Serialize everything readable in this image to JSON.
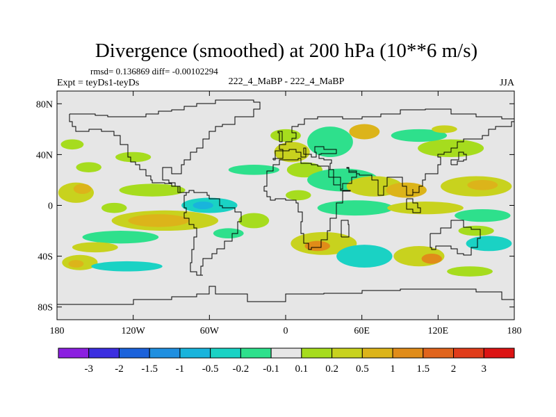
{
  "chart_data": {
    "type": "heatmap",
    "title": "Divergence (smoothed) at 200 hPa (10**6 m/s)",
    "stats": "rmsd= 0.136869 diff= -0.00102294",
    "left_label": "Expt = teyDs1-teyDs",
    "center_label": "222_4_MaBP - 222_4_MaBP",
    "right_label": "JJA",
    "x_axis": {
      "range": [
        -180,
        180
      ],
      "ticks": [
        -180,
        -120,
        -60,
        0,
        60,
        120,
        180
      ],
      "tick_labels": [
        "180",
        "120W",
        "60W",
        "0",
        "60E",
        "120E",
        "180"
      ]
    },
    "y_axis": {
      "range": [
        -90,
        90
      ],
      "ticks": [
        80,
        40,
        0,
        -40,
        -80
      ],
      "tick_labels": [
        "80N",
        "40N",
        "0",
        "40S",
        "80S"
      ]
    },
    "colorbar": {
      "labels": [
        "-3",
        "-2",
        "-1.5",
        "-1",
        "-0.5",
        "-0.2",
        "-0.1",
        "0.1",
        "0.2",
        "0.5",
        "1",
        "1.5",
        "2",
        "3"
      ],
      "colors": [
        "#8b1fe0",
        "#3b2ee0",
        "#1b62db",
        "#1f8fe0",
        "#19b4dc",
        "#1ad2c4",
        "#2ee08c",
        "#e6e6e6",
        "#a6dc1e",
        "#c8d21e",
        "#dcb41a",
        "#e08c19",
        "#e0641c",
        "#e03c1a",
        "#dc1414"
      ]
    },
    "background_color": "#e6e6e6",
    "regions": [
      {
        "lon": -165,
        "lat": 10,
        "rlon": 14,
        "rlat": 8,
        "level": 9
      },
      {
        "lon": -160,
        "lat": 13,
        "rlon": 7,
        "rlat": 4,
        "level": 10
      },
      {
        "lon": -155,
        "lat": 30,
        "rlon": 10,
        "rlat": 4,
        "level": 8
      },
      {
        "lon": -105,
        "lat": 12,
        "rlon": 26,
        "rlat": 5,
        "level": 8
      },
      {
        "lon": -120,
        "lat": 38,
        "rlon": 14,
        "rlat": 4,
        "level": 8
      },
      {
        "lon": -168,
        "lat": 48,
        "rlon": 9,
        "rlat": 4,
        "level": 8
      },
      {
        "lon": -95,
        "lat": -12,
        "rlon": 42,
        "rlat": 8,
        "level": 9
      },
      {
        "lon": -100,
        "lat": -12,
        "rlon": 24,
        "rlat": 5,
        "level": 10
      },
      {
        "lon": -135,
        "lat": -2,
        "rlon": 10,
        "rlat": 4,
        "level": 8
      },
      {
        "lon": -60,
        "lat": 0,
        "rlon": 22,
        "rlat": 6,
        "level": 5
      },
      {
        "lon": -65,
        "lat": 0,
        "rlon": 8,
        "rlat": 3,
        "level": 4
      },
      {
        "lon": -130,
        "lat": -25,
        "rlon": 30,
        "rlat": 5,
        "level": 6
      },
      {
        "lon": -150,
        "lat": -33,
        "rlon": 18,
        "rlat": 4,
        "level": 9
      },
      {
        "lon": -162,
        "lat": -45,
        "rlon": 14,
        "rlat": 6,
        "level": 9
      },
      {
        "lon": -165,
        "lat": -46,
        "rlon": 6,
        "rlat": 3,
        "level": 10
      },
      {
        "lon": -125,
        "lat": -48,
        "rlon": 28,
        "rlat": 4,
        "level": 5
      },
      {
        "lon": -25,
        "lat": -12,
        "rlon": 12,
        "rlat": 6,
        "level": 8
      },
      {
        "lon": -45,
        "lat": -22,
        "rlon": 12,
        "rlat": 4,
        "level": 6
      },
      {
        "lon": -25,
        "lat": 28,
        "rlon": 20,
        "rlat": 4,
        "level": 6
      },
      {
        "lon": 5,
        "lat": 42,
        "rlon": 14,
        "rlat": 8,
        "level": 9
      },
      {
        "lon": 0,
        "lat": 55,
        "rlon": 12,
        "rlat": 5,
        "level": 8
      },
      {
        "lon": 35,
        "lat": 50,
        "rlon": 18,
        "rlat": 12,
        "level": 6
      },
      {
        "lon": 62,
        "lat": 58,
        "rlon": 12,
        "rlat": 6,
        "level": 10
      },
      {
        "lon": 15,
        "lat": 28,
        "rlon": 14,
        "rlat": 6,
        "level": 8
      },
      {
        "lon": 45,
        "lat": 20,
        "rlon": 28,
        "rlat": 9,
        "level": 6
      },
      {
        "lon": 10,
        "lat": 8,
        "rlon": 10,
        "rlat": 4,
        "level": 8
      },
      {
        "lon": 70,
        "lat": 15,
        "rlon": 22,
        "rlat": 8,
        "level": 9
      },
      {
        "lon": 95,
        "lat": 12,
        "rlon": 16,
        "rlat": 6,
        "level": 10
      },
      {
        "lon": 150,
        "lat": 15,
        "rlon": 28,
        "rlat": 8,
        "level": 9
      },
      {
        "lon": 155,
        "lat": 16,
        "rlon": 12,
        "rlat": 4,
        "level": 10
      },
      {
        "lon": 130,
        "lat": 45,
        "rlon": 26,
        "rlat": 7,
        "level": 8
      },
      {
        "lon": 105,
        "lat": 55,
        "rlon": 22,
        "rlat": 5,
        "level": 6
      },
      {
        "lon": 125,
        "lat": 60,
        "rlon": 10,
        "rlat": 3,
        "level": 9
      },
      {
        "lon": 55,
        "lat": -2,
        "rlon": 30,
        "rlat": 6,
        "level": 6
      },
      {
        "lon": 110,
        "lat": -2,
        "rlon": 30,
        "rlat": 5,
        "level": 9
      },
      {
        "lon": 155,
        "lat": -8,
        "rlon": 22,
        "rlat": 5,
        "level": 6
      },
      {
        "lon": 30,
        "lat": -30,
        "rlon": 26,
        "rlat": 9,
        "level": 9
      },
      {
        "lon": 25,
        "lat": -32,
        "rlon": 10,
        "rlat": 4,
        "level": 11
      },
      {
        "lon": 62,
        "lat": -40,
        "rlon": 22,
        "rlat": 9,
        "level": 5
      },
      {
        "lon": 105,
        "lat": -40,
        "rlon": 20,
        "rlat": 8,
        "level": 9
      },
      {
        "lon": 115,
        "lat": -42,
        "rlon": 8,
        "rlat": 4,
        "level": 11
      },
      {
        "lon": 160,
        "lat": -30,
        "rlon": 18,
        "rlat": 6,
        "level": 5
      },
      {
        "lon": 145,
        "lat": -52,
        "rlon": 18,
        "rlat": 4,
        "level": 8
      },
      {
        "lon": 150,
        "lat": -20,
        "rlon": 14,
        "rlat": 4,
        "level": 8
      }
    ],
    "coastlines": [
      [
        [
          -170,
          72
        ],
        [
          -160,
          72
        ],
        [
          -150,
          71
        ],
        [
          -140,
          70
        ],
        [
          -130,
          70
        ],
        [
          -120,
          70
        ],
        [
          -110,
          72
        ],
        [
          -100,
          74
        ],
        [
          -90,
          75
        ],
        [
          -80,
          78
        ],
        [
          -70,
          80
        ],
        [
          -55,
          83
        ],
        [
          -40,
          83
        ],
        [
          -25,
          81
        ],
        [
          -20,
          76
        ],
        [
          -25,
          70
        ],
        [
          -40,
          64
        ],
        [
          -50,
          62
        ],
        [
          -55,
          58
        ],
        [
          -60,
          52
        ],
        [
          -65,
          45
        ],
        [
          -70,
          42
        ],
        [
          -75,
          36
        ],
        [
          -80,
          32
        ],
        [
          -82,
          25
        ],
        [
          -90,
          30
        ],
        [
          -97,
          27
        ],
        [
          -97,
          20
        ],
        [
          -92,
          18
        ],
        [
          -87,
          15
        ],
        [
          -83,
          10
        ],
        [
          -78,
          8
        ],
        [
          -80,
          2
        ],
        [
          -80,
          -2
        ],
        [
          -78,
          -6
        ],
        [
          -80,
          -10
        ],
        [
          -76,
          -15
        ],
        [
          -72,
          -18
        ],
        [
          -70,
          -25
        ],
        [
          -72,
          -35
        ],
        [
          -74,
          -45
        ],
        [
          -75,
          -52
        ],
        [
          -70,
          -55
        ],
        [
          -65,
          -55
        ],
        [
          -67,
          -48
        ],
        [
          -65,
          -42
        ],
        [
          -58,
          -38
        ],
        [
          -54,
          -34
        ],
        [
          -48,
          -28
        ],
        [
          -42,
          -22
        ],
        [
          -38,
          -13
        ],
        [
          -35,
          -8
        ],
        [
          -35,
          -5
        ],
        [
          -40,
          -2
        ],
        [
          -50,
          0
        ],
        [
          -52,
          5
        ],
        [
          -60,
          8
        ],
        [
          -62,
          10
        ],
        [
          -72,
          12
        ],
        [
          -76,
          10
        ],
        [
          -83,
          10
        ],
        [
          -85,
          15
        ],
        [
          -90,
          17
        ],
        [
          -95,
          18
        ],
        [
          -105,
          20
        ],
        [
          -106,
          23
        ],
        [
          -110,
          28
        ],
        [
          -115,
          32
        ],
        [
          -118,
          34
        ],
        [
          -122,
          38
        ],
        [
          -124,
          42
        ],
        [
          -124,
          48
        ],
        [
          -130,
          55
        ],
        [
          -135,
          58
        ],
        [
          -145,
          60
        ],
        [
          -150,
          60
        ],
        [
          -155,
          58
        ],
        [
          -160,
          58
        ],
        [
          -165,
          62
        ],
        [
          -168,
          66
        ],
        [
          -170,
          72
        ]
      ],
      [
        [
          -17,
          15
        ],
        [
          -15,
          27
        ],
        [
          -10,
          32
        ],
        [
          -5,
          36
        ],
        [
          0,
          36
        ],
        [
          10,
          37
        ],
        [
          12,
          33
        ],
        [
          20,
          32
        ],
        [
          25,
          31
        ],
        [
          32,
          31
        ],
        [
          34,
          28
        ],
        [
          38,
          22
        ],
        [
          43,
          12
        ],
        [
          51,
          11
        ],
        [
          45,
          2
        ],
        [
          40,
          -5
        ],
        [
          40,
          -10
        ],
        [
          35,
          -20
        ],
        [
          33,
          -27
        ],
        [
          28,
          -33
        ],
        [
          20,
          -35
        ],
        [
          18,
          -30
        ],
        [
          14,
          -22
        ],
        [
          12,
          -13
        ],
        [
          13,
          -5
        ],
        [
          10,
          2
        ],
        [
          8,
          4
        ],
        [
          0,
          5
        ],
        [
          -8,
          4
        ],
        [
          -12,
          7
        ],
        [
          -15,
          11
        ],
        [
          -17,
          15
        ]
      ],
      [
        [
          -10,
          36
        ],
        [
          -8,
          43
        ],
        [
          -2,
          44
        ],
        [
          -5,
          48
        ],
        [
          0,
          50
        ],
        [
          5,
          53
        ],
        [
          8,
          57
        ],
        [
          5,
          62
        ],
        [
          10,
          64
        ],
        [
          15,
          68
        ],
        [
          25,
          70
        ],
        [
          35,
          70
        ],
        [
          45,
          68
        ],
        [
          60,
          70
        ],
        [
          75,
          72
        ],
        [
          90,
          75
        ],
        [
          110,
          76
        ],
        [
          130,
          72
        ],
        [
          150,
          70
        ],
        [
          170,
          68
        ],
        [
          180,
          66
        ],
        [
          178,
          62
        ],
        [
          165,
          60
        ],
        [
          160,
          55
        ],
        [
          155,
          52
        ],
        [
          140,
          50
        ],
        [
          135,
          45
        ],
        [
          130,
          42
        ],
        [
          125,
          40
        ],
        [
          120,
          38
        ],
        [
          122,
          32
        ],
        [
          120,
          25
        ],
        [
          110,
          20
        ],
        [
          108,
          15
        ],
        [
          105,
          10
        ],
        [
          100,
          13
        ],
        [
          100,
          8
        ],
        [
          95,
          15
        ],
        [
          92,
          22
        ],
        [
          88,
          22
        ],
        [
          80,
          15
        ],
        [
          77,
          8
        ],
        [
          73,
          20
        ],
        [
          68,
          24
        ],
        [
          58,
          25
        ],
        [
          56,
          27
        ],
        [
          50,
          30
        ],
        [
          48,
          29
        ],
        [
          50,
          26
        ],
        [
          56,
          22
        ],
        [
          52,
          17
        ],
        [
          45,
          13
        ],
        [
          43,
          16
        ],
        [
          38,
          22
        ],
        [
          34,
          28
        ],
        [
          35,
          33
        ],
        [
          36,
          36
        ],
        [
          30,
          37
        ],
        [
          26,
          40
        ],
        [
          28,
          41
        ],
        [
          40,
          41
        ],
        [
          40,
          44
        ],
        [
          30,
          46
        ],
        [
          23,
          42
        ],
        [
          24,
          38
        ],
        [
          20,
          40
        ],
        [
          14,
          45
        ],
        [
          16,
          38
        ],
        [
          12,
          42
        ],
        [
          8,
          44
        ],
        [
          3,
          43
        ],
        [
          -2,
          37
        ],
        [
          -10,
          36
        ]
      ],
      [
        [
          114,
          -22
        ],
        [
          122,
          -18
        ],
        [
          130,
          -12
        ],
        [
          137,
          -12
        ],
        [
          140,
          -17
        ],
        [
          146,
          -19
        ],
        [
          153,
          -26
        ],
        [
          151,
          -33
        ],
        [
          146,
          -39
        ],
        [
          140,
          -38
        ],
        [
          135,
          -34
        ],
        [
          130,
          -32
        ],
        [
          118,
          -35
        ],
        [
          115,
          -33
        ],
        [
          114,
          -22
        ]
      ],
      [
        [
          -180,
          -78
        ],
        [
          -150,
          -78
        ],
        [
          -120,
          -74
        ],
        [
          -90,
          -72
        ],
        [
          -70,
          -70
        ],
        [
          -60,
          -64
        ],
        [
          -55,
          -70
        ],
        [
          -30,
          -76
        ],
        [
          0,
          -70
        ],
        [
          30,
          -69
        ],
        [
          60,
          -67
        ],
        [
          90,
          -66
        ],
        [
          120,
          -66
        ],
        [
          150,
          -68
        ],
        [
          170,
          -74
        ],
        [
          180,
          -78
        ]
      ],
      [
        [
          -5,
          50
        ],
        [
          -3,
          58
        ],
        [
          -6,
          57
        ],
        [
          -5,
          50
        ]
      ],
      [
        [
          130,
          32
        ],
        [
          135,
          35
        ],
        [
          140,
          36
        ],
        [
          142,
          40
        ],
        [
          140,
          42
        ],
        [
          136,
          36
        ],
        [
          130,
          32
        ]
      ],
      [
        [
          95,
          5
        ],
        [
          100,
          2
        ],
        [
          104,
          -2
        ],
        [
          106,
          -6
        ],
        [
          100,
          -3
        ],
        [
          95,
          5
        ]
      ],
      [
        [
          44,
          -25
        ],
        [
          47,
          -25
        ],
        [
          50,
          -15
        ],
        [
          49,
          -12
        ],
        [
          44,
          -17
        ],
        [
          44,
          -25
        ]
      ]
    ]
  }
}
